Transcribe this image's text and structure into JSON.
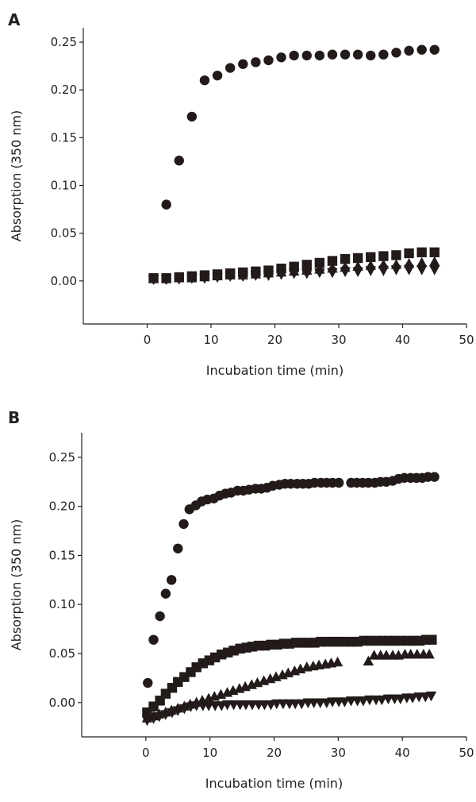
{
  "chart_data": [
    {
      "type": "scatter",
      "panel_label": "A",
      "xlabel": "Incubation time (min)",
      "ylabel": "Absorption (350 nm)",
      "xlim": [
        -10,
        50
      ],
      "ylim": [
        -0.045,
        0.265
      ],
      "xticks": [
        "0",
        "10",
        "20",
        "30",
        "40",
        "50"
      ],
      "yticks": [
        "0.00",
        "0.05",
        "0.10",
        "0.15",
        "0.20",
        "0.25"
      ],
      "grid": false,
      "series": [
        {
          "marker": "circle",
          "x": [
            3,
            5,
            7,
            9,
            11,
            13,
            15,
            17,
            19,
            21,
            23,
            25,
            27,
            29,
            31,
            33,
            35,
            37,
            39,
            41,
            43,
            45
          ],
          "y": [
            0.08,
            0.126,
            0.172,
            0.21,
            0.215,
            0.223,
            0.227,
            0.229,
            0.231,
            0.234,
            0.236,
            0.236,
            0.236,
            0.237,
            0.237,
            0.237,
            0.236,
            0.237,
            0.239,
            0.241,
            0.242,
            0.242
          ]
        },
        {
          "marker": "square",
          "x": [
            1,
            3,
            5,
            7,
            9,
            11,
            13,
            15,
            17,
            19,
            21,
            23,
            25,
            27,
            29,
            31,
            33,
            35,
            37,
            39,
            41,
            43,
            45
          ],
          "y": [
            0.003,
            0.003,
            0.004,
            0.005,
            0.006,
            0.007,
            0.008,
            0.009,
            0.01,
            0.011,
            0.013,
            0.015,
            0.017,
            0.019,
            0.021,
            0.023,
            0.024,
            0.025,
            0.026,
            0.027,
            0.029,
            0.03,
            0.03
          ]
        },
        {
          "marker": "triangle-up",
          "x": [
            1,
            3,
            5,
            7,
            9,
            11,
            13,
            15,
            17,
            19,
            21,
            23,
            25,
            27,
            29,
            31,
            33,
            35,
            37,
            39,
            41,
            43,
            45
          ],
          "y": [
            0.002,
            0.002,
            0.003,
            0.003,
            0.004,
            0.005,
            0.006,
            0.006,
            0.007,
            0.008,
            0.009,
            0.01,
            0.011,
            0.012,
            0.013,
            0.014,
            0.015,
            0.016,
            0.017,
            0.017,
            0.018,
            0.019,
            0.02
          ]
        },
        {
          "marker": "diamond",
          "x": [
            1,
            3,
            5,
            7,
            9,
            11,
            13,
            15,
            17,
            19,
            21,
            23,
            25,
            27,
            29,
            31,
            33,
            35,
            37,
            39,
            41,
            43,
            45
          ],
          "y": [
            0.002,
            0.002,
            0.003,
            0.004,
            0.004,
            0.005,
            0.006,
            0.007,
            0.007,
            0.008,
            0.009,
            0.01,
            0.01,
            0.011,
            0.012,
            0.013,
            0.013,
            0.014,
            0.015,
            0.015,
            0.016,
            0.016,
            0.016
          ]
        },
        {
          "marker": "triangle-down",
          "x": [
            1,
            3,
            5,
            7,
            9,
            11,
            13,
            15,
            17,
            19,
            21,
            23,
            25,
            27,
            29,
            31,
            33,
            35,
            37,
            39,
            41,
            43,
            45
          ],
          "y": [
            0.002,
            0.002,
            0.002,
            0.003,
            0.003,
            0.004,
            0.005,
            0.005,
            0.006,
            0.006,
            0.007,
            0.008,
            0.008,
            0.009,
            0.009,
            0.01,
            0.01,
            0.011,
            0.011,
            0.012,
            0.012,
            0.012,
            0.012
          ]
        }
      ]
    },
    {
      "type": "scatter",
      "panel_label": "B",
      "xlabel": "Incubation time (min)",
      "ylabel": "Absorption (350 nm)",
      "xlim": [
        -10,
        50
      ],
      "ylim": [
        -0.035,
        0.275
      ],
      "xticks": [
        "0",
        "10",
        "20",
        "30",
        "40",
        "50"
      ],
      "yticks": [
        "0.00",
        "0.05",
        "0.10",
        "0.15",
        "0.20",
        "0.25"
      ],
      "grid": false,
      "series": [
        {
          "marker": "circle",
          "x": [
            0.3,
            1.2,
            2.2,
            3.1,
            4.0,
            5.0,
            5.9,
            6.8,
            7.8,
            8.7,
            9.6,
            10.6,
            11.5,
            12.4,
            13.3,
            14.3,
            15.2,
            16.1,
            17.1,
            18.0,
            18.9,
            19.8,
            20.8,
            21.7,
            22.6,
            23.6,
            24.5,
            25.4,
            26.3,
            27.3,
            28.2,
            29.1,
            30.1,
            32.0,
            32.9,
            33.8,
            34.7,
            35.7,
            36.6,
            37.5,
            38.5,
            39.4,
            40.3,
            41.3,
            42.2,
            43.1,
            44.0,
            45.0
          ],
          "y": [
            0.02,
            0.064,
            0.088,
            0.111,
            0.125,
            0.157,
            0.182,
            0.197,
            0.201,
            0.205,
            0.207,
            0.208,
            0.211,
            0.213,
            0.214,
            0.216,
            0.216,
            0.217,
            0.218,
            0.218,
            0.219,
            0.221,
            0.222,
            0.223,
            0.223,
            0.223,
            0.223,
            0.223,
            0.224,
            0.224,
            0.224,
            0.224,
            0.224,
            0.224,
            0.224,
            0.224,
            0.224,
            0.224,
            0.225,
            0.225,
            0.226,
            0.228,
            0.229,
            0.229,
            0.229,
            0.229,
            0.23,
            0.23
          ]
        },
        {
          "marker": "square",
          "x": [
            0.2,
            1.2,
            2.2,
            3.1,
            4.1,
            5.0,
            6.0,
            7.0,
            7.9,
            8.9,
            9.9,
            10.8,
            11.8,
            12.8,
            13.7,
            14.7,
            15.7,
            16.6,
            17.6,
            18.6,
            19.5,
            20.5,
            21.5,
            22.4,
            23.4,
            24.4,
            25.3,
            26.3,
            27.3,
            28.2,
            29.2,
            30.2,
            31.1,
            32.1,
            33.0,
            34.0,
            35.0,
            35.9,
            36.9,
            37.9,
            38.8,
            39.8,
            40.8,
            41.7,
            42.7,
            43.7,
            44.6
          ],
          "y": [
            -0.01,
            -0.004,
            0.002,
            0.009,
            0.015,
            0.021,
            0.026,
            0.031,
            0.036,
            0.04,
            0.043,
            0.046,
            0.049,
            0.051,
            0.053,
            0.055,
            0.056,
            0.057,
            0.058,
            0.058,
            0.059,
            0.059,
            0.06,
            0.06,
            0.061,
            0.061,
            0.061,
            0.061,
            0.062,
            0.062,
            0.062,
            0.062,
            0.062,
            0.062,
            0.062,
            0.063,
            0.063,
            0.063,
            0.063,
            0.063,
            0.063,
            0.063,
            0.063,
            0.063,
            0.063,
            0.064,
            0.064
          ]
        },
        {
          "marker": "triangle-up",
          "x": [
            0.2,
            1.2,
            2.1,
            3.1,
            4.0,
            5.0,
            6.0,
            6.9,
            7.9,
            8.8,
            9.8,
            10.7,
            11.7,
            12.7,
            13.6,
            14.6,
            15.5,
            16.5,
            17.4,
            18.4,
            19.4,
            20.3,
            21.3,
            22.2,
            23.2,
            24.1,
            25.1,
            26.1,
            27.0,
            28.0,
            28.9,
            29.9,
            34.7,
            35.6,
            36.6,
            37.5,
            38.5,
            39.4,
            40.4,
            41.3,
            42.3,
            43.3,
            44.2
          ],
          "y": [
            -0.016,
            -0.014,
            -0.012,
            -0.01,
            -0.008,
            -0.006,
            -0.004,
            -0.002,
            0.0,
            0.002,
            0.004,
            0.006,
            0.008,
            0.01,
            0.012,
            0.014,
            0.016,
            0.018,
            0.02,
            0.022,
            0.024,
            0.026,
            0.028,
            0.03,
            0.032,
            0.034,
            0.036,
            0.037,
            0.038,
            0.039,
            0.04,
            0.041,
            0.042,
            0.048,
            0.048,
            0.048,
            0.048,
            0.048,
            0.049,
            0.049,
            0.049,
            0.049,
            0.049
          ]
        },
        {
          "marker": "triangle-down",
          "x": [
            0.2,
            1.2,
            2.1,
            3.1,
            4.1,
            5.0,
            6.0,
            7.0,
            7.9,
            8.9,
            9.8,
            10.8,
            11.8,
            12.7,
            13.7,
            14.7,
            15.6,
            16.6,
            17.6,
            18.5,
            19.5,
            20.4,
            21.4,
            22.4,
            23.3,
            24.3,
            25.3,
            26.2,
            27.2,
            28.2,
            29.1,
            30.1,
            31.0,
            32.0,
            33.0,
            33.9,
            34.9,
            35.9,
            36.8,
            37.8,
            38.8,
            39.7,
            40.7,
            41.6,
            42.6,
            43.6,
            44.5
          ],
          "y": [
            -0.018,
            -0.016,
            -0.014,
            -0.012,
            -0.01,
            -0.008,
            -0.006,
            -0.004,
            -0.003,
            -0.003,
            -0.003,
            -0.003,
            -0.003,
            -0.002,
            -0.002,
            -0.002,
            -0.002,
            -0.002,
            -0.002,
            -0.002,
            -0.002,
            -0.001,
            -0.001,
            -0.001,
            -0.001,
            -0.001,
            0.0,
            0.0,
            0.0,
            0.0,
            0.001,
            0.001,
            0.001,
            0.002,
            0.002,
            0.002,
            0.003,
            0.003,
            0.003,
            0.004,
            0.004,
            0.004,
            0.005,
            0.005,
            0.006,
            0.006,
            0.007
          ]
        }
      ]
    }
  ]
}
